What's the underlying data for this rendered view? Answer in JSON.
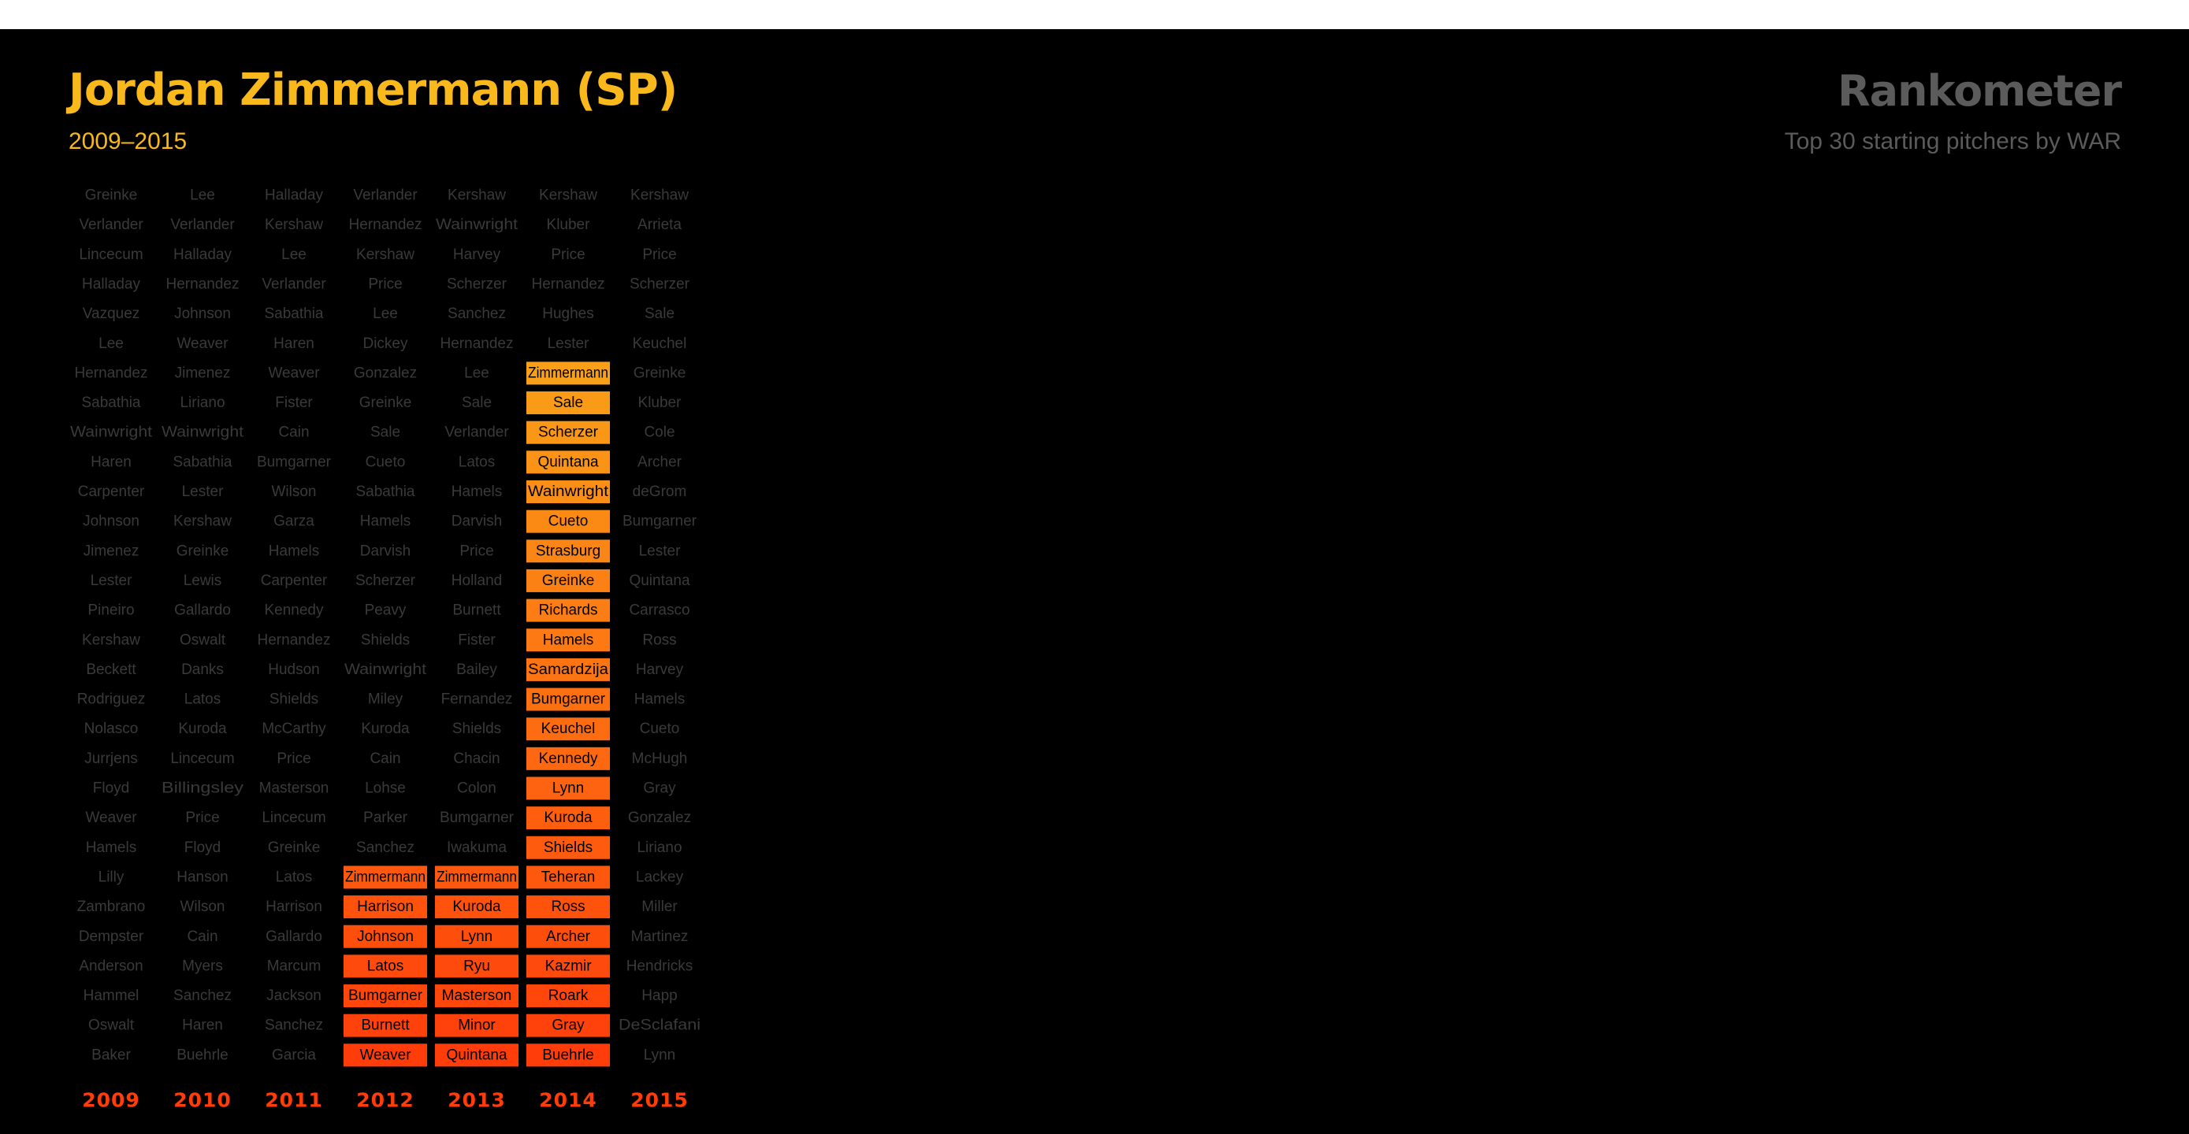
{
  "player": {
    "title": "Jordan Zimmermann (SP)",
    "years": "2009–2015"
  },
  "app": {
    "title": "Rankometer",
    "subtitle": "Top 30 starting pitchers by WAR"
  },
  "colors": {
    "background": "#000000",
    "title": "#f9b91c",
    "dim_text": "#3a3a3a",
    "app_text": "#5b5b5b",
    "highlight_top": "#f9b91c",
    "highlight_bottom": "#ff3d0a",
    "year_label": "#ff3d0a"
  },
  "chart_data": {
    "type": "table",
    "columns": [
      {
        "year": "2009",
        "pitchers": [
          "Greinke",
          "Verlander",
          "Lincecum",
          "Halladay",
          "Vazquez",
          "Lee",
          "Hernandez",
          "Sabathia",
          "Wainwright",
          "Haren",
          "Carpenter",
          "Johnson",
          "Jimenez",
          "Lester",
          "Pineiro",
          "Kershaw",
          "Beckett",
          "Rodriguez",
          "Nolasco",
          "Jurrjens",
          "Floyd",
          "Weaver",
          "Hamels",
          "Lilly",
          "Zambrano",
          "Dempster",
          "Anderson",
          "Hammel",
          "Oswalt",
          "Baker"
        ],
        "highlight_from": null
      },
      {
        "year": "2010",
        "pitchers": [
          "Lee",
          "Verlander",
          "Halladay",
          "Hernandez",
          "Johnson",
          "Weaver",
          "Jimenez",
          "Liriano",
          "Wainwright",
          "Sabathia",
          "Lester",
          "Kershaw",
          "Greinke",
          "Lewis",
          "Gallardo",
          "Oswalt",
          "Danks",
          "Latos",
          "Kuroda",
          "Lincecum",
          "Billingsley",
          "Price",
          "Floyd",
          "Hanson",
          "Wilson",
          "Cain",
          "Myers",
          "Sanchez",
          "Haren",
          "Buehrle"
        ],
        "highlight_from": null
      },
      {
        "year": "2011",
        "pitchers": [
          "Halladay",
          "Kershaw",
          "Lee",
          "Verlander",
          "Sabathia",
          "Haren",
          "Weaver",
          "Fister",
          "Cain",
          "Bumgarner",
          "Wilson",
          "Garza",
          "Hamels",
          "Carpenter",
          "Kennedy",
          "Hernandez",
          "Hudson",
          "Shields",
          "McCarthy",
          "Price",
          "Masterson",
          "Lincecum",
          "Greinke",
          "Latos",
          "Harrison",
          "Gallardo",
          "Marcum",
          "Jackson",
          "Sanchez",
          "Garcia"
        ],
        "highlight_from": null
      },
      {
        "year": "2012",
        "pitchers": [
          "Verlander",
          "Hernandez",
          "Kershaw",
          "Price",
          "Lee",
          "Dickey",
          "Gonzalez",
          "Greinke",
          "Sale",
          "Cueto",
          "Sabathia",
          "Hamels",
          "Darvish",
          "Scherzer",
          "Peavy",
          "Shields",
          "Wainwright",
          "Miley",
          "Kuroda",
          "Cain",
          "Lohse",
          "Parker",
          "Sanchez",
          "Zimmermann",
          "Harrison",
          "Johnson",
          "Latos",
          "Bumgarner",
          "Burnett",
          "Weaver"
        ],
        "highlight_from": 23
      },
      {
        "year": "2013",
        "pitchers": [
          "Kershaw",
          "Wainwright",
          "Harvey",
          "Scherzer",
          "Sanchez",
          "Hernandez",
          "Lee",
          "Sale",
          "Verlander",
          "Latos",
          "Hamels",
          "Darvish",
          "Price",
          "Holland",
          "Burnett",
          "Fister",
          "Bailey",
          "Fernandez",
          "Shields",
          "Chacin",
          "Colon",
          "Bumgarner",
          "Iwakuma",
          "Zimmermann",
          "Kuroda",
          "Lynn",
          "Ryu",
          "Masterson",
          "Minor",
          "Quintana"
        ],
        "highlight_from": 23
      },
      {
        "year": "2014",
        "pitchers": [
          "Kershaw",
          "Kluber",
          "Price",
          "Hernandez",
          "Hughes",
          "Lester",
          "Zimmermann",
          "Sale",
          "Scherzer",
          "Quintana",
          "Wainwright",
          "Cueto",
          "Strasburg",
          "Greinke",
          "Richards",
          "Hamels",
          "Samardzija",
          "Bumgarner",
          "Keuchel",
          "Kennedy",
          "Lynn",
          "Kuroda",
          "Shields",
          "Teheran",
          "Ross",
          "Archer",
          "Kazmir",
          "Roark",
          "Gray",
          "Buehrle"
        ],
        "highlight_from": 6
      },
      {
        "year": "2015",
        "pitchers": [
          "Kershaw",
          "Arrieta",
          "Price",
          "Scherzer",
          "Sale",
          "Keuchel",
          "Greinke",
          "Kluber",
          "Cole",
          "Archer",
          "deGrom",
          "Bumgarner",
          "Lester",
          "Quintana",
          "Carrasco",
          "Ross",
          "Harvey",
          "Hamels",
          "Cueto",
          "McHugh",
          "Gray",
          "Gonzalez",
          "Liriano",
          "Lackey",
          "Miller",
          "Martinez",
          "Hendricks",
          "Happ",
          "DeSclafani",
          "Lynn"
        ],
        "highlight_from": null
      }
    ]
  }
}
